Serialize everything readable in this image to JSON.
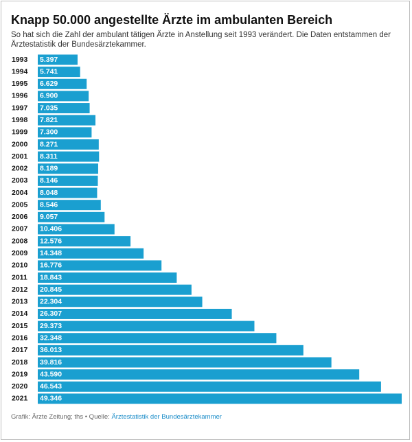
{
  "header": {
    "title": "Knapp 50.000 angestellte Ärzte im ambulanten Bereich",
    "subtitle": "So hat sich die Zahl der ambulant tätigen Ärzte in Anstellung seit 1993 verändert. Die Daten entstammen der Ärztestatistik der Bundesärztekammer."
  },
  "footer": {
    "credit": "Grafik: Ärzte Zeitung; ths",
    "separator": " • Quelle: ",
    "source": "Ärztestatistik der Bundesärztekammer"
  },
  "colors": {
    "bar": "#1a9fd0",
    "bar_label": "#ffffff",
    "category_label": "#111111"
  },
  "chart_data": {
    "type": "bar",
    "orientation": "horizontal",
    "title": "Knapp 50.000 angestellte Ärzte im ambulanten Bereich",
    "xlabel": "",
    "ylabel": "",
    "grid": false,
    "xlim": [
      0,
      49346
    ],
    "categories": [
      "1993",
      "1994",
      "1995",
      "1996",
      "1997",
      "1998",
      "1999",
      "2000",
      "2001",
      "2002",
      "2003",
      "2004",
      "2005",
      "2006",
      "2007",
      "2008",
      "2009",
      "2010",
      "2011",
      "2012",
      "2013",
      "2014",
      "2015",
      "2016",
      "2017",
      "2018",
      "2019",
      "2020",
      "2021"
    ],
    "values": [
      5397,
      5741,
      6629,
      6900,
      7035,
      7821,
      7300,
      8271,
      8311,
      8189,
      8146,
      8048,
      8546,
      9057,
      10406,
      12576,
      14348,
      16776,
      18843,
      20845,
      22304,
      26307,
      29373,
      32348,
      36013,
      39816,
      43590,
      46543,
      49346
    ],
    "value_labels": [
      "5.397",
      "5.741",
      "6.629",
      "6.900",
      "7.035",
      "7.821",
      "7.300",
      "8.271",
      "8.311",
      "8.189",
      "8.146",
      "8.048",
      "8.546",
      "9.057",
      "10.406",
      "12.576",
      "14.348",
      "16.776",
      "18.843",
      "20.845",
      "22.304",
      "26.307",
      "29.373",
      "32.348",
      "36.013",
      "39.816",
      "43.590",
      "46.543",
      "49.346"
    ]
  }
}
